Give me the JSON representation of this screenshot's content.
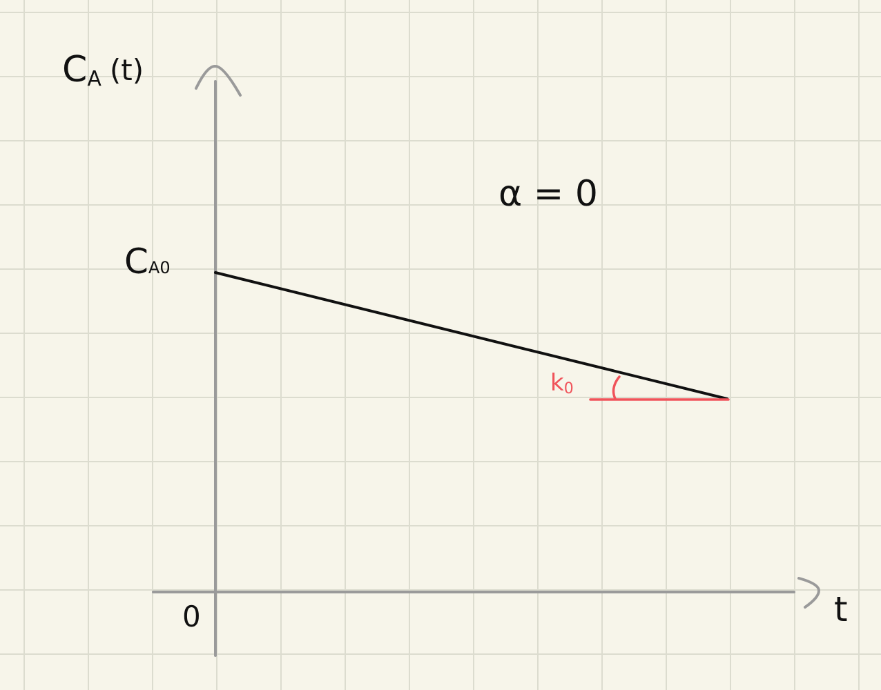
{
  "labels": {
    "y_axis": "C",
    "y_axis_sub": "A",
    "y_axis_arg": "(t)",
    "x_axis": "t",
    "origin": "0",
    "initial_value": "C",
    "initial_value_sub": "A0",
    "order": "α = 0",
    "slope": "k",
    "slope_sub": "0"
  },
  "colors": {
    "paper": "#f7f5ea",
    "grid": "#dcdccf",
    "axis": "#9a9a9a",
    "line": "#111111",
    "slope_annotation": "#f0535a"
  }
}
